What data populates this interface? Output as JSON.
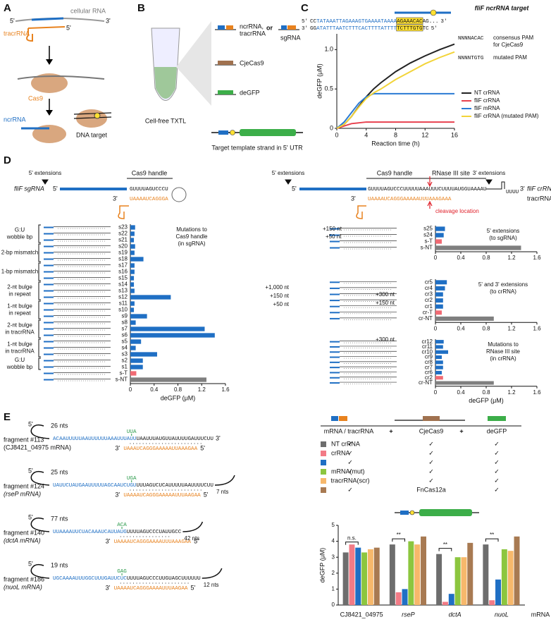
{
  "labels": {
    "p5": "5'",
    "p3": "3'",
    "plus": "+"
  },
  "panel_labels": [
    "A",
    "B",
    "C",
    "D",
    "E"
  ],
  "panel_a": {
    "cellular_rna": "cellular RNA",
    "tracrrna": "tracrRNA",
    "cas9": "Cas9",
    "ncrrna": "ncrRNA",
    "dna_target": "DNA target"
  },
  "panel_b": {
    "txtl": "Cell-free TXTL",
    "ncr": [
      "ncrRNA,",
      "tracrRNA"
    ],
    "or": "or",
    "sgrna": "sgRNA",
    "cas9": "CjeCas9",
    "degfp": "deGFP",
    "template": "Target template strand in 5' UTR"
  },
  "panel_c": {
    "target": "fliF ncrRNA target",
    "seq_top": [
      "CC",
      "TATAAATTAGAAAGTGAAAATAAAA",
      "AGAAACAC",
      "AG..."
    ],
    "seq_bottom": [
      "GG",
      "ATATTTAATCTTTCACTTTTATTTT",
      "TCTTTGTG",
      "TC"
    ],
    "pam_consensus": "NNNNACAC",
    "pam_consensus_note": [
      "consensus PAM",
      "for CjeCas9"
    ],
    "pam_mutated": "NNNNTGTG",
    "pam_mutated_note": "mutated PAM"
  },
  "panel_d": {
    "ext5": "5' extensions",
    "ext3": "3' extensions",
    "handle": "Cas9 handle",
    "rnase": "RNase III site",
    "sgrna": "fliF sgRNA",
    "crrna": "fliF crRNA",
    "tracrrna": "tracrRNA",
    "cleavage": "cleavage location",
    "sg_top": "GUUUUAGUCCCU",
    "sg_bottom": "UAAAAUCAGGGA",
    "cr_top": "GUUUUAGUCCCUUUUUAAAUUUCUUUUAUGGUAAAAU",
    "cr_bottom": "UAAAAUCAGGGAAAAAUUUAAAGAAA",
    "loop": "UUUU",
    "nt150": "+150 nt",
    "nt50": "+50 nt",
    "nt1000": "+1,000 nt",
    "nt300": "+300 nt"
  },
  "panel_e": {
    "fragments": [
      {
        "name": "fragment #113",
        "gene": "(CJ8421_04975 mRNA)",
        "upstream": "26 nts",
        "seq_blue": "ACAAUUUUUAAUUUUUUAAAUUUAUU",
        "codon": "UUA",
        "seq_black": "UAAUUUAUGUUAUUUUGAUUUCUU",
        "tracr": "UAAAUCAGGGAAAAAUUAAAGAA",
        "downstream": null
      },
      {
        "name": "fragment #124",
        "gene": "(rseP mRNA)",
        "upstream": "25 nts",
        "seq_blue": "UAUUCUAUGAAUUUUUAGCAAUCUGU",
        "codon": "UGA",
        "seq_black": "UUUAGUCUCAUUUUUAAUUUUCUU",
        "tracr": "UAAAAUCAGGGAAAAAUUUAAGAA",
        "downstream": "7 nts"
      },
      {
        "name": "fragment #140",
        "gene": "(dctA mRNA)",
        "upstream": "77 nts",
        "seq_blue": "UUAAAAUUCUACAAAUCAUUAUG",
        "codon": "ACA",
        "seq_black": "UUUUAGUCCCUAUUGCC",
        "tracr": "UAAAAUCAGGGAAAAUUUAAAGAA",
        "downstream": "42 nts"
      },
      {
        "name": "fragment #186",
        "gene": "(nuoL mRNA)",
        "upstream": "19 nts",
        "seq_blue": "UGCAAAAUUUGGCUUUGAUUCUC",
        "codon": "GAG",
        "seq_black": "UUUUAGUCCCUUGUAGCUUUUUU",
        "tracr": "UAAAAUCAGGGAAAAUUUAAGAA",
        "downstream": "12 nts"
      }
    ],
    "table": {
      "headers": [
        "mRNA / tracrRNA",
        "CjeCas9",
        "deGFP"
      ],
      "rows": [
        [
          "NT crRNA",
          "✓",
          "✓",
          "✓"
        ],
        [
          "crRNA",
          "✓",
          "✓",
          "✓"
        ],
        [
          null,
          "✓",
          "✓",
          "✓"
        ],
        [
          "mRNA(mut)",
          "✓",
          "✓",
          "✓"
        ],
        [
          null,
          "tracrRNA(scr)",
          "✓",
          "✓"
        ],
        [
          null,
          "✓",
          "FnCas12a",
          "✓"
        ]
      ]
    }
  },
  "chart_data": [
    {
      "type": "line",
      "x": [
        0,
        1,
        2,
        3,
        4,
        5,
        6,
        8,
        10,
        12,
        14,
        16
      ],
      "xlim": [
        0,
        16
      ],
      "xticks": [
        0,
        4,
        8,
        12,
        16
      ],
      "ylim": [
        0,
        1.2
      ],
      "yticks": [
        0,
        0.5,
        {
          "value": 1,
          "label": "1.0"
        }
      ],
      "xlabel": "Reaction time (h)",
      "ylabel": "deGFP (μM)",
      "legend": "right",
      "series": [
        {
          "name": "NT crRNA",
          "color": "#222222",
          "values": [
            0,
            0.05,
            0.15,
            0.28,
            0.4,
            0.5,
            0.58,
            0.72,
            0.83,
            0.92,
            1.0,
            1.07
          ]
        },
        {
          "name": "fliF crRNA",
          "color": "#e8414e",
          "values": [
            0,
            0.03,
            0.06,
            0.07,
            0.08,
            0.08,
            0.08,
            0.08,
            0.08,
            0.08,
            0.08,
            0.08
          ]
        },
        {
          "name": "fliF mRNA",
          "color": "#2a7bd4",
          "values": [
            0,
            0.08,
            0.2,
            0.32,
            0.4,
            0.44,
            0.44,
            0.44,
            0.44,
            0.44,
            0.44,
            0.44
          ]
        },
        {
          "name": "fliF crRNA (mutated PAM)",
          "color": "#f2d43a",
          "values": [
            0,
            0.05,
            0.15,
            0.27,
            0.38,
            0.45,
            0.5,
            0.62,
            0.72,
            0.82,
            0.9,
            0.97
          ]
        }
      ]
    },
    {
      "type": "hbar",
      "categories": [
        "s23",
        "s22",
        "s21",
        "s20",
        "s19",
        "s18",
        "s17",
        "s16",
        "s15",
        "s14",
        "s13",
        "s12",
        "s11",
        "s10",
        "s9",
        "s8",
        "s7",
        "s6",
        "s5",
        "s4",
        "s3",
        "s2",
        "s1",
        "s-T",
        "s-NT"
      ],
      "values": [
        0.08,
        0.07,
        0.06,
        0.08,
        0.07,
        0.22,
        0.07,
        0.07,
        0.06,
        0.06,
        0.07,
        0.68,
        0.07,
        0.06,
        0.28,
        0.09,
        1.25,
        1.42,
        0.18,
        0.09,
        0.45,
        0.21,
        0.21,
        0.1,
        1.28
      ],
      "colors": [
        "#1f6fc4",
        "#1f6fc4",
        "#1f6fc4",
        "#1f6fc4",
        "#1f6fc4",
        "#1f6fc4",
        "#1f6fc4",
        "#1f6fc4",
        "#1f6fc4",
        "#1f6fc4",
        "#1f6fc4",
        "#1f6fc4",
        "#1f6fc4",
        "#1f6fc4",
        "#1f6fc4",
        "#1f6fc4",
        "#1f6fc4",
        "#1f6fc4",
        "#1f6fc4",
        "#1f6fc4",
        "#1f6fc4",
        "#1f6fc4",
        "#1f6fc4",
        "#f06a73",
        "#7f7f7f"
      ],
      "xlim": [
        0,
        1.6
      ],
      "xticks": [
        0,
        0.4,
        0.8,
        1.2,
        1.6
      ],
      "xlabel": "deGFP (μM)",
      "annotation": [
        "Mutations to",
        "Cas9 handle",
        "(in sgRNA)"
      ],
      "groups": [
        {
          "lines": [
            "G:U",
            "wobble bp"
          ],
          "count": 3
        },
        {
          "lines": [
            "2-bp mismatch"
          ],
          "count": 3
        },
        {
          "lines": [
            "1-bp mismatch"
          ],
          "count": 3
        },
        {
          "lines": [
            "2-nt bulge",
            "in repeat"
          ],
          "count": 3
        },
        {
          "lines": [
            "1-nt bulge",
            "in repeat"
          ],
          "count": 3
        },
        {
          "lines": [
            "2-nt bulge",
            "in tracrRNA"
          ],
          "count": 3
        },
        {
          "lines": [
            "1-nt bulge",
            "in tracrRNA"
          ],
          "count": 3
        },
        {
          "lines": [
            "G:U",
            "wobble bp"
          ],
          "count": 2
        }
      ]
    },
    {
      "type": "hbar",
      "categories": [
        "s25",
        "s24",
        "s-T",
        "s-NT"
      ],
      "values": [
        0.15,
        0.13,
        0.1,
        1.35
      ],
      "colors": [
        "#1f6fc4",
        "#1f6fc4",
        "#f06a73",
        "#7f7f7f"
      ],
      "xlim": [
        0,
        1.6
      ],
      "xticks": [
        0,
        0.4,
        0.8,
        1.2,
        1.6
      ],
      "annotation": [
        "5' extensions",
        "(to sgRNA)"
      ]
    },
    {
      "type": "hbar",
      "categories": [
        "cr5",
        "cr4",
        "cr3",
        "cr2",
        "cr1",
        "cr-T",
        "cr-NT"
      ],
      "values": [
        0.18,
        0.15,
        0.12,
        0.12,
        0.12,
        0.1,
        0.92
      ],
      "colors": [
        "#1f6fc4",
        "#1f6fc4",
        "#1f6fc4",
        "#1f6fc4",
        "#1f6fc4",
        "#f06a73",
        "#7f7f7f"
      ],
      "xlim": [
        0,
        1.6
      ],
      "xticks": [
        0,
        0.4,
        0.8,
        1.2,
        1.6
      ],
      "annotation": [
        "5' and 3' extensions",
        "(to crRNA)"
      ]
    },
    {
      "type": "hbar",
      "categories": [
        "cr12",
        "cr11",
        "cr10",
        "cr9",
        "cr8",
        "cr7",
        "cr6",
        "cr2",
        "cr-NT"
      ],
      "values": [
        0.13,
        0.12,
        0.2,
        0.1,
        0.12,
        0.12,
        0.1,
        0.12,
        0.92
      ],
      "colors": [
        "#1f6fc4",
        "#1f6fc4",
        "#1f6fc4",
        "#1f6fc4",
        "#1f6fc4",
        "#1f6fc4",
        "#1f6fc4",
        "#f06a73",
        "#7f7f7f"
      ],
      "xlim": [
        0,
        1.6
      ],
      "xticks": [
        0,
        0.4,
        0.8,
        1.2,
        1.6
      ],
      "xlabel": "deGFP (μM)",
      "annotation": [
        "Mutations to",
        "RNase III site",
        "(in crRNA)"
      ]
    },
    {
      "type": "groupbar",
      "categories": [
        "CJ8421_04975",
        "rseP",
        "dctA",
        "nuoL"
      ],
      "ylim": [
        0,
        5
      ],
      "yticks": [
        0,
        1,
        2,
        3,
        4,
        5
      ],
      "ylabel": "deGFP (μM)",
      "xlabel": "mRNA",
      "significance": [
        "n.s.",
        "**",
        "**",
        "**"
      ],
      "series": [
        {
          "color": "#6d6d6d",
          "values": [
            3.3,
            3.8,
            3.2,
            3.8
          ]
        },
        {
          "color": "#f27b86",
          "values": [
            3.8,
            0.8,
            0.2,
            0.3
          ]
        },
        {
          "color": "#1f6fc4",
          "values": [
            3.6,
            1.0,
            0.7,
            1.6
          ]
        },
        {
          "color": "#8cc63f",
          "values": [
            3.3,
            4.0,
            3.0,
            3.5
          ]
        },
        {
          "color": "#f7b86b",
          "values": [
            3.5,
            3.8,
            3.0,
            3.4
          ]
        },
        {
          "color": "#a87a52",
          "values": [
            3.6,
            4.3,
            3.9,
            4.3
          ]
        }
      ]
    }
  ]
}
